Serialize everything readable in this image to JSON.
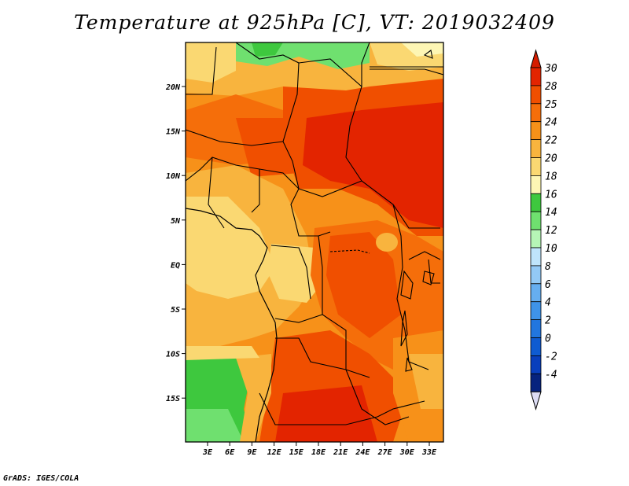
{
  "title": "Temperature at 925hPa [C], VT: 2019032409",
  "credit": "GrADS: IGES/COLA",
  "map": {
    "lon_ticks": [
      "3E",
      "6E",
      "9E",
      "12E",
      "15E",
      "18E",
      "21E",
      "24E",
      "27E",
      "30E",
      "33E"
    ],
    "lat_ticks": [
      "20N",
      "15N",
      "10N",
      "5N",
      "EQ",
      "5S",
      "10S",
      "15S"
    ]
  },
  "colorbar": {
    "labels": [
      "30",
      "28",
      "25",
      "24",
      "22",
      "20",
      "18",
      "16",
      "14",
      "12",
      "10",
      "8",
      "6",
      "4",
      "2",
      "0",
      "-2",
      "-4"
    ],
    "colors": [
      "#e32400",
      "#f04f00",
      "#f56e0a",
      "#f79119",
      "#f8b43e",
      "#fad872",
      "#fdf6b4",
      "#3ec83e",
      "#6fe06f",
      "#b6f5b6",
      "#bfe4fb",
      "#93c9f5",
      "#66aef0",
      "#3f93e9",
      "#2276df",
      "#0f5bd1",
      "#093fbd",
      "#06237e"
    ],
    "top_color": "#d51c00",
    "bottom_color": "#dcdcf4"
  }
}
